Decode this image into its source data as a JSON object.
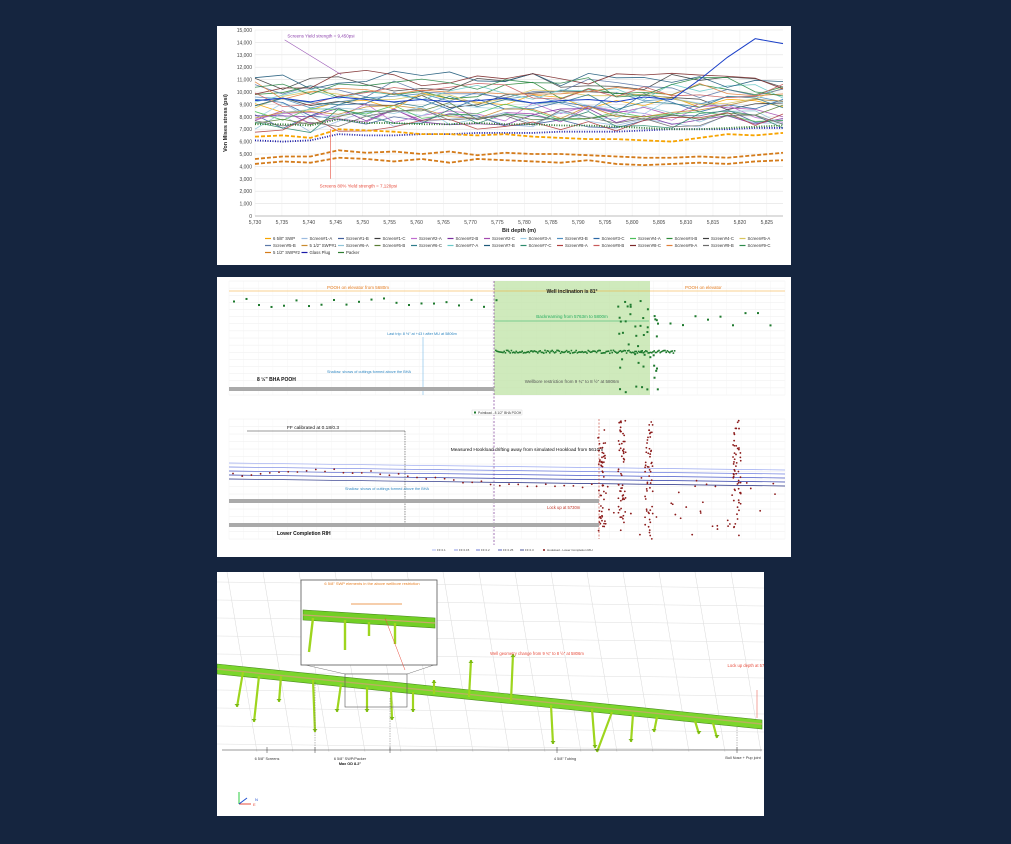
{
  "chart_data": [
    {
      "type": "line",
      "ylabel": "Von Mises stress (psi)",
      "xlabel": "Bit depth (m)",
      "ylim": [
        0,
        15000
      ],
      "xlim": [
        5730,
        5828
      ],
      "y_ticks": [
        "0",
        "1,000",
        "2,000",
        "3,000",
        "4,000",
        "5,000",
        "6,000",
        "7,000",
        "8,000",
        "9,000",
        "10,000",
        "11,000",
        "12,000",
        "13,000",
        "14,000",
        "15,000"
      ],
      "x_ticks": [
        "5,730",
        "5,735",
        "5,740",
        "5,745",
        "5,750",
        "5,755",
        "5,760",
        "5,765",
        "5,770",
        "5,775",
        "5,780",
        "5,785",
        "5,790",
        "5,795",
        "5,800",
        "5,805",
        "5,810",
        "5,815",
        "5,820",
        "5,825"
      ],
      "annotations": [
        "Screens Yield strength = 9,450psi",
        "Screens 80% Yield strength = 7,120psi"
      ],
      "grid": true,
      "legend_position": "bottom",
      "legend": [
        {
          "name": "6 5/8\" SWP",
          "color": "#f7a400"
        },
        {
          "name": "Screen#1-A",
          "color": "#9bbbe0"
        },
        {
          "name": "Screen#1-B",
          "color": "#43609c"
        },
        {
          "name": "Screen#1-C",
          "color": "#3c3c3c"
        },
        {
          "name": "Screen#2-A",
          "color": "#c06dd0"
        },
        {
          "name": "Screen#2-B",
          "color": "#7a2f9e"
        },
        {
          "name": "Screen#2-C",
          "color": "#a44ab0"
        },
        {
          "name": "Screen#3-A",
          "color": "#9ecfe8"
        },
        {
          "name": "Screen#3-B",
          "color": "#4f8fc0"
        },
        {
          "name": "Screen#3-C",
          "color": "#2a67a6"
        },
        {
          "name": "Screen#4-A",
          "color": "#4cbf5a"
        },
        {
          "name": "Screen#4-B",
          "color": "#2e8b3a"
        },
        {
          "name": "Screen#4-C",
          "color": "#3f3f3f"
        },
        {
          "name": "Screen#5-A",
          "color": "#d8c45a"
        },
        {
          "name": "Screen#5-B",
          "color": "#5c78a8"
        },
        {
          "name": "5 1/2\" SWP#1",
          "color": "#c98a2f"
        },
        {
          "name": "Screen#6-A",
          "color": "#8fc4d8"
        },
        {
          "name": "Screen#6-B",
          "color": "#5a7d36"
        },
        {
          "name": "Screen#6-C",
          "color": "#2f7d8c"
        },
        {
          "name": "Screen#7-A",
          "color": "#69c9c9"
        },
        {
          "name": "Screen#7-B",
          "color": "#1f5a7a"
        },
        {
          "name": "Screen#7-C",
          "color": "#2c8a6c"
        },
        {
          "name": "Screen#8-A",
          "color": "#b04040"
        },
        {
          "name": "Screen#8-B",
          "color": "#c85a5a"
        },
        {
          "name": "Screen#8-C",
          "color": "#7c2a2a"
        },
        {
          "name": "Screen#9-A",
          "color": "#e07f3a"
        },
        {
          "name": "Screen#9-B",
          "color": "#6a6a6a"
        },
        {
          "name": "Screen#9-C",
          "color": "#2d8a4a"
        },
        {
          "name": "5 1/2\" SWP#2",
          "color": "#d47b1a"
        },
        {
          "name": "Glass Plug",
          "color": "#1a1aa8"
        },
        {
          "name": "Packer",
          "color": "#2e7d32"
        }
      ],
      "series_summary": [
        {
          "color": "#1a1aa8",
          "values": [
            6100,
            6000,
            6100,
            6600,
            6500,
            6500,
            6600,
            6600,
            6700,
            6700,
            6700,
            6800,
            6800,
            6800,
            6900,
            7000,
            7000,
            7000,
            7100,
            7100
          ],
          "style": "dotted"
        },
        {
          "color": "#d47b1a",
          "values": [
            4600,
            4800,
            4800,
            5300,
            5100,
            5200,
            5000,
            5200,
            4900,
            5100,
            5000,
            5000,
            4900,
            4800,
            4700,
            4700,
            4800,
            4700,
            4900,
            5100
          ],
          "style": "dashed"
        },
        {
          "color": "#d47b1a",
          "values": [
            4200,
            4400,
            4300,
            4700,
            4600,
            4400,
            4600,
            4300,
            4600,
            4500,
            4400,
            4300,
            4500,
            4200,
            4100,
            4200,
            4300,
            4200,
            4400,
            4500
          ],
          "style": "dashed"
        },
        {
          "color": "#2e7d32",
          "values": [
            7400,
            7400,
            7300,
            7800,
            7500,
            7500,
            7400,
            7400,
            7500,
            7400,
            7400,
            7300,
            7300,
            7200,
            7100,
            7000,
            7000,
            7100,
            7200,
            7300
          ],
          "style": "dotted"
        },
        {
          "color": "#f7a400",
          "values": [
            6400,
            6500,
            6300,
            7000,
            6900,
            6800,
            6600,
            6600,
            6500,
            6600,
            6400,
            6300,
            6200,
            6200,
            6100,
            6000,
            6300,
            6600,
            6500,
            6700
          ],
          "style": "dashed"
        },
        {
          "color": "#1a3fc8",
          "values": [
            9300,
            9500,
            9200,
            9600,
            9400,
            9200,
            9400,
            9200,
            9300,
            9500,
            9100,
            9300,
            9400,
            9200,
            9600,
            9400,
            11000,
            12800,
            14300,
            13900
          ],
          "style": "solid"
        }
      ]
    },
    {
      "type": "scatter",
      "ylabel": "Pointload (t)",
      "xlabel": "Bit depth (m)",
      "annotations": [
        "Well inclination is 81°",
        "POOH on elevator from 5680m",
        "Backreaming from 5763m to 5800m",
        "Wellbore restriction from 9 ¾\" to 8 ½\" at 5806m",
        "POOH on elevator",
        "8 ½\" BHA POOH",
        "Last trip: 8 ½\" at +43 t after MU at 5806m",
        "Shallow: shows of cuttings formed above the BHA"
      ],
      "legend": [
        "Pointload - 8 1/2\" BHA POOH"
      ]
    },
    {
      "type": "scatter",
      "ylabel": "Pointload (t)",
      "xlabel": "Bit depth (m)",
      "annotations": [
        "FF calibrated at 0.18/0.3",
        "Measured Hookload drifting away from simulated Hookload from 5610m",
        "Lock up at 5730m",
        "Lower Completion RIH",
        "Shallow: shows of cuttings formed above the BHA"
      ],
      "legend": [
        "FF 0.1",
        "FF 0.15",
        "FF 0.2",
        "FF 0.25",
        "FF 0.3",
        "Hookload - Lower Completion RIH"
      ]
    },
    {
      "type": "diagram",
      "annotations": [
        "6 5/8\" SWP elements in the above wellbore restriction",
        "Well geometry change from 9 ¾\" to 8 ½\" at 5806m",
        "Lock up depth at 5730m"
      ],
      "labels": [
        "6 5/8\" Screens",
        "6 5/8\" SWP/Packer",
        "Max OD 8.2\"",
        "4 5/8\" Tubing",
        "Bull Nose + Pup joint"
      ],
      "axis_labels": [
        "N",
        "E"
      ]
    }
  ]
}
